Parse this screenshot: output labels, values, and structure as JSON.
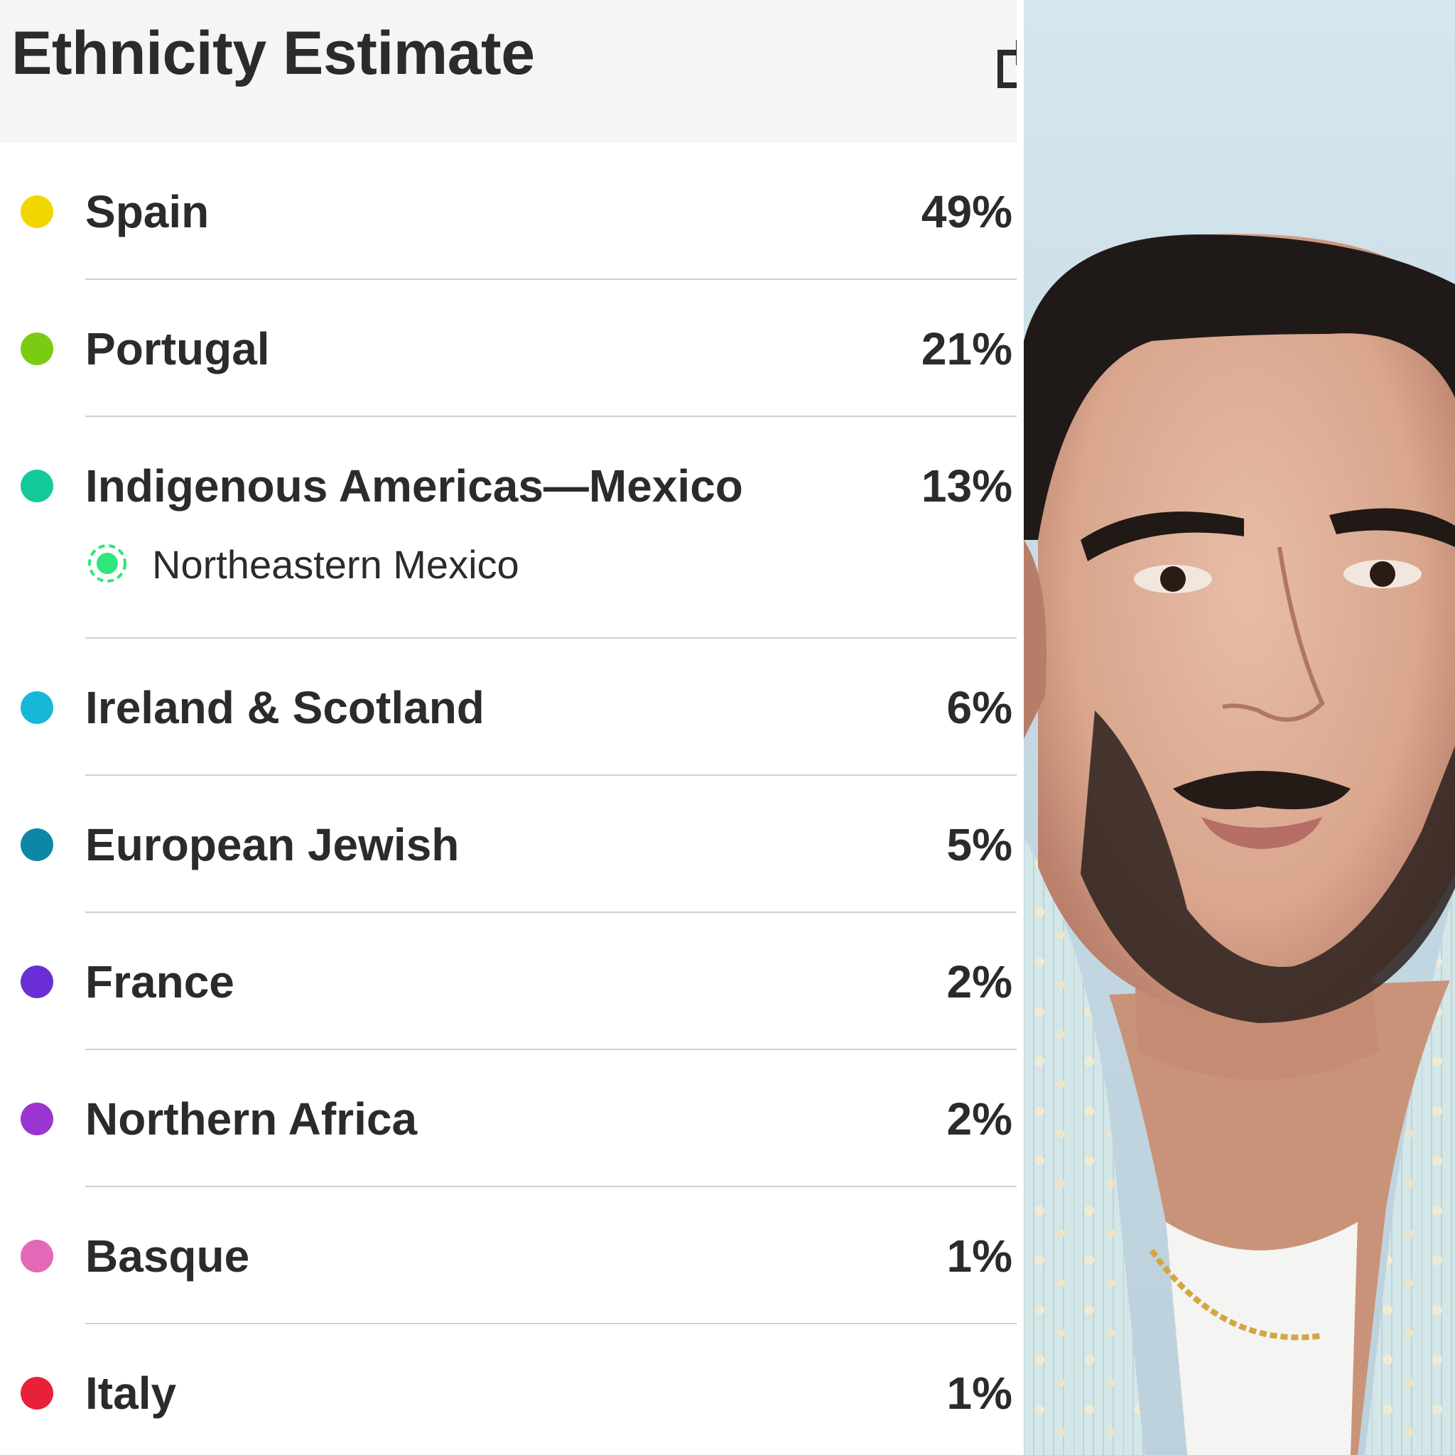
{
  "header": {
    "title": "Ethnicity Estimate",
    "share_icon": "share-icon"
  },
  "regions": [
    {
      "name": "Spain",
      "percent": "49%",
      "color": "#f2d600"
    },
    {
      "name": "Portugal",
      "percent": "21%",
      "color": "#7acc12"
    },
    {
      "name": "Indigenous Americas—Mexico",
      "percent": "13%",
      "color": "#12c99a",
      "sub_region": {
        "name": "Northeastern Mexico",
        "color": "#2ee67a",
        "icon": "community-icon"
      }
    },
    {
      "name": "Ireland & Scotland",
      "percent": "6%",
      "color": "#17b8d8"
    },
    {
      "name": "European Jewish",
      "percent": "5%",
      "color": "#0e86a6"
    },
    {
      "name": "France",
      "percent": "2%",
      "color": "#6a2fd4"
    },
    {
      "name": "Northern Africa",
      "percent": "2%",
      "color": "#9b35d1"
    },
    {
      "name": "Basque",
      "percent": "1%",
      "color": "#e468b8"
    },
    {
      "name": "Italy",
      "percent": "1%",
      "color": "#e8203a"
    }
  ],
  "photo": {
    "subject": "portrait-photo"
  }
}
